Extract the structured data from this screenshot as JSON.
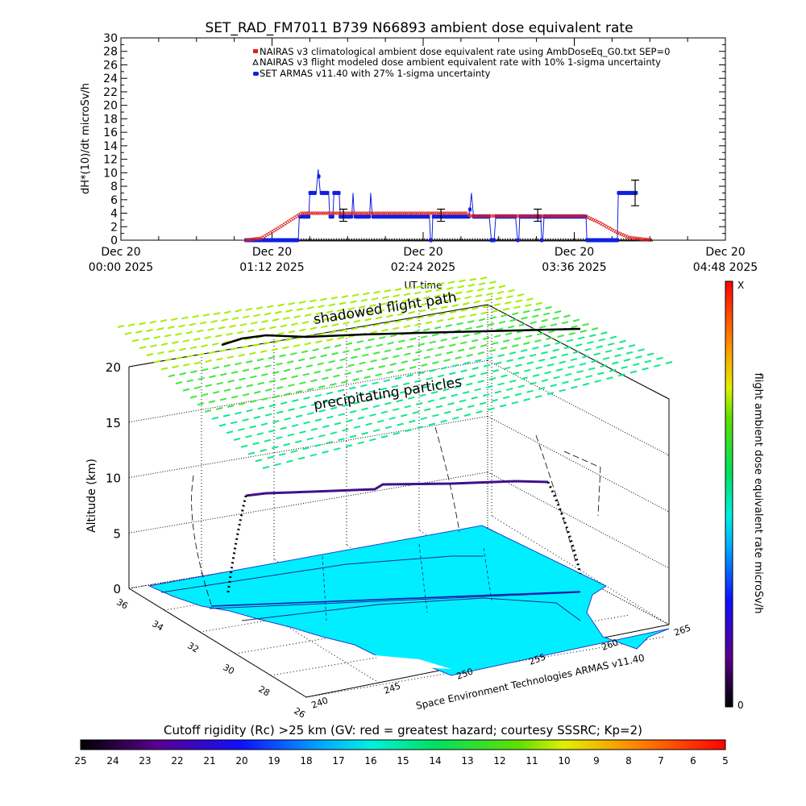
{
  "title": "SET_RAD_FM7011  B739 N66893 ambient dose equivalent rate",
  "colors": {
    "nairas_clim": "#e02020",
    "nairas_flight": "#000000",
    "armas": "#1020e0",
    "map": "#00eeff"
  },
  "chart_data": [
    {
      "type": "line",
      "ylabel": "dH*(10)/dt microSv/h",
      "xlabel": "UT time",
      "ylim": [
        0,
        30
      ],
      "yticks": [
        "0",
        "2",
        "4",
        "6",
        "8",
        "10",
        "12",
        "14",
        "16",
        "18",
        "20",
        "22",
        "24",
        "26",
        "28",
        "30"
      ],
      "xlim_minutes_ut": [
        0,
        288
      ],
      "xticks": [
        {
          "line1": "Dec 20",
          "line2": "00:00 2025",
          "minute": 0
        },
        {
          "line1": "Dec 20",
          "line2": "01:12 2025",
          "minute": 72
        },
        {
          "line1": "Dec 20",
          "line2": "02:24 2025",
          "minute": 144
        },
        {
          "line1": "Dec 20",
          "line2": "03:36 2025",
          "minute": 216
        },
        {
          "line1": "Dec 20",
          "line2": "04:48 2025",
          "minute": 288
        }
      ],
      "legend_position": "top-right",
      "legend": [
        "NAIRAS v3 climatological ambient dose equivalent rate using AmbDoseEq_G0.txt SEP=0",
        "NAIRAS v3 flight modeled dose ambient equivalent rate with 10% 1-sigma uncertainty",
        "SET ARMAS v11.40 with 27% 1-sigma uncertainty"
      ],
      "series": [
        {
          "name": "NAIRAS v3 climatological",
          "points": [
            [
              59.5,
              0
            ],
            [
              67,
              0.3
            ],
            [
              75,
              1.8
            ],
            [
              86,
              4
            ],
            [
              165,
              4
            ],
            [
              166,
              3.6
            ],
            [
              221,
              3.6
            ],
            [
              228,
              2.6
            ],
            [
              236,
              1.2
            ],
            [
              242,
              0.4
            ],
            [
              253,
              0
            ]
          ]
        },
        {
          "name": "NAIRAS v3 flight modeled",
          "points": [
            [
              59.5,
              0
            ],
            [
              253,
              0
            ]
          ]
        },
        {
          "name": "SET ARMAS v11.40",
          "points": [
            [
              59.5,
              0
            ],
            [
              84.5,
              0
            ],
            [
              85,
              3.5
            ],
            [
              89.5,
              3.5
            ],
            [
              90,
              7
            ],
            [
              93,
              7
            ],
            [
              94,
              10.5
            ],
            [
              95,
              7
            ],
            [
              99,
              7
            ],
            [
              99.5,
              3.5
            ],
            [
              101,
              3.5
            ],
            [
              101.5,
              7
            ],
            [
              104,
              7
            ],
            [
              104.5,
              3.5
            ],
            [
              110,
              3.5
            ],
            [
              110.6,
              7
            ],
            [
              111.2,
              3.5
            ],
            [
              118.5,
              3.5
            ],
            [
              119,
              7
            ],
            [
              119.8,
              3.5
            ],
            [
              147,
              3.5
            ],
            [
              147.5,
              0
            ],
            [
              148.2,
              0
            ],
            [
              148.6,
              3.5
            ],
            [
              166,
              3.5
            ],
            [
              167,
              7
            ],
            [
              168,
              3.5
            ],
            [
              175.5,
              3.5
            ],
            [
              176.5,
              0
            ],
            [
              177.8,
              0
            ],
            [
              178.6,
              3.5
            ],
            [
              188,
              3.5
            ],
            [
              189,
              0
            ],
            [
              189.6,
              0
            ],
            [
              190,
              3.5
            ],
            [
              200,
              3.5
            ],
            [
              200.5,
              0
            ],
            [
              201,
              0
            ],
            [
              201.6,
              3.5
            ],
            [
              221.6,
              3.5
            ],
            [
              222,
              0
            ],
            [
              236.5,
              0
            ],
            [
              237,
              7
            ],
            [
              246,
              7
            ]
          ]
        }
      ],
      "error_bars": [
        {
          "minute": 106,
          "value": 3.7,
          "sigma": 0.9
        },
        {
          "minute": 152.5,
          "value": 3.7,
          "sigma": 0.9
        },
        {
          "minute": 198.6,
          "value": 3.7,
          "sigma": 0.9
        },
        {
          "minute": 245,
          "value": 7,
          "sigma": 1.9
        }
      ]
    },
    {
      "type": "3d-surface",
      "zlabel": "Altitude (km)",
      "zticks": [
        "0",
        "5",
        "10",
        "15",
        "20"
      ],
      "lat_ticks": [
        "36",
        "34",
        "32",
        "30",
        "28",
        "26"
      ],
      "lon_ticks": [
        "240",
        "245",
        "250",
        "255",
        "260",
        "265"
      ],
      "annotations": [
        "shadowed flight path",
        "precipitating particles"
      ],
      "credit": "Space Environment Technologies ARMAS v11.40"
    }
  ],
  "right_colorbar": {
    "title": "flight ambient dose equivalent rate microSv/h",
    "top_label": "X",
    "bottom_label": "0"
  },
  "bottom_colorbar": {
    "title": "Cutoff rigidity (Rc) >25 km (GV: red = greatest hazard; courtesy SSSRC; Kp=2)",
    "labels": [
      "25",
      "24",
      "23",
      "22",
      "21",
      "20",
      "19",
      "18",
      "17",
      "16",
      "15",
      "14",
      "13",
      "12",
      "11",
      "10",
      "9",
      "8",
      "7",
      "6",
      "5"
    ]
  }
}
